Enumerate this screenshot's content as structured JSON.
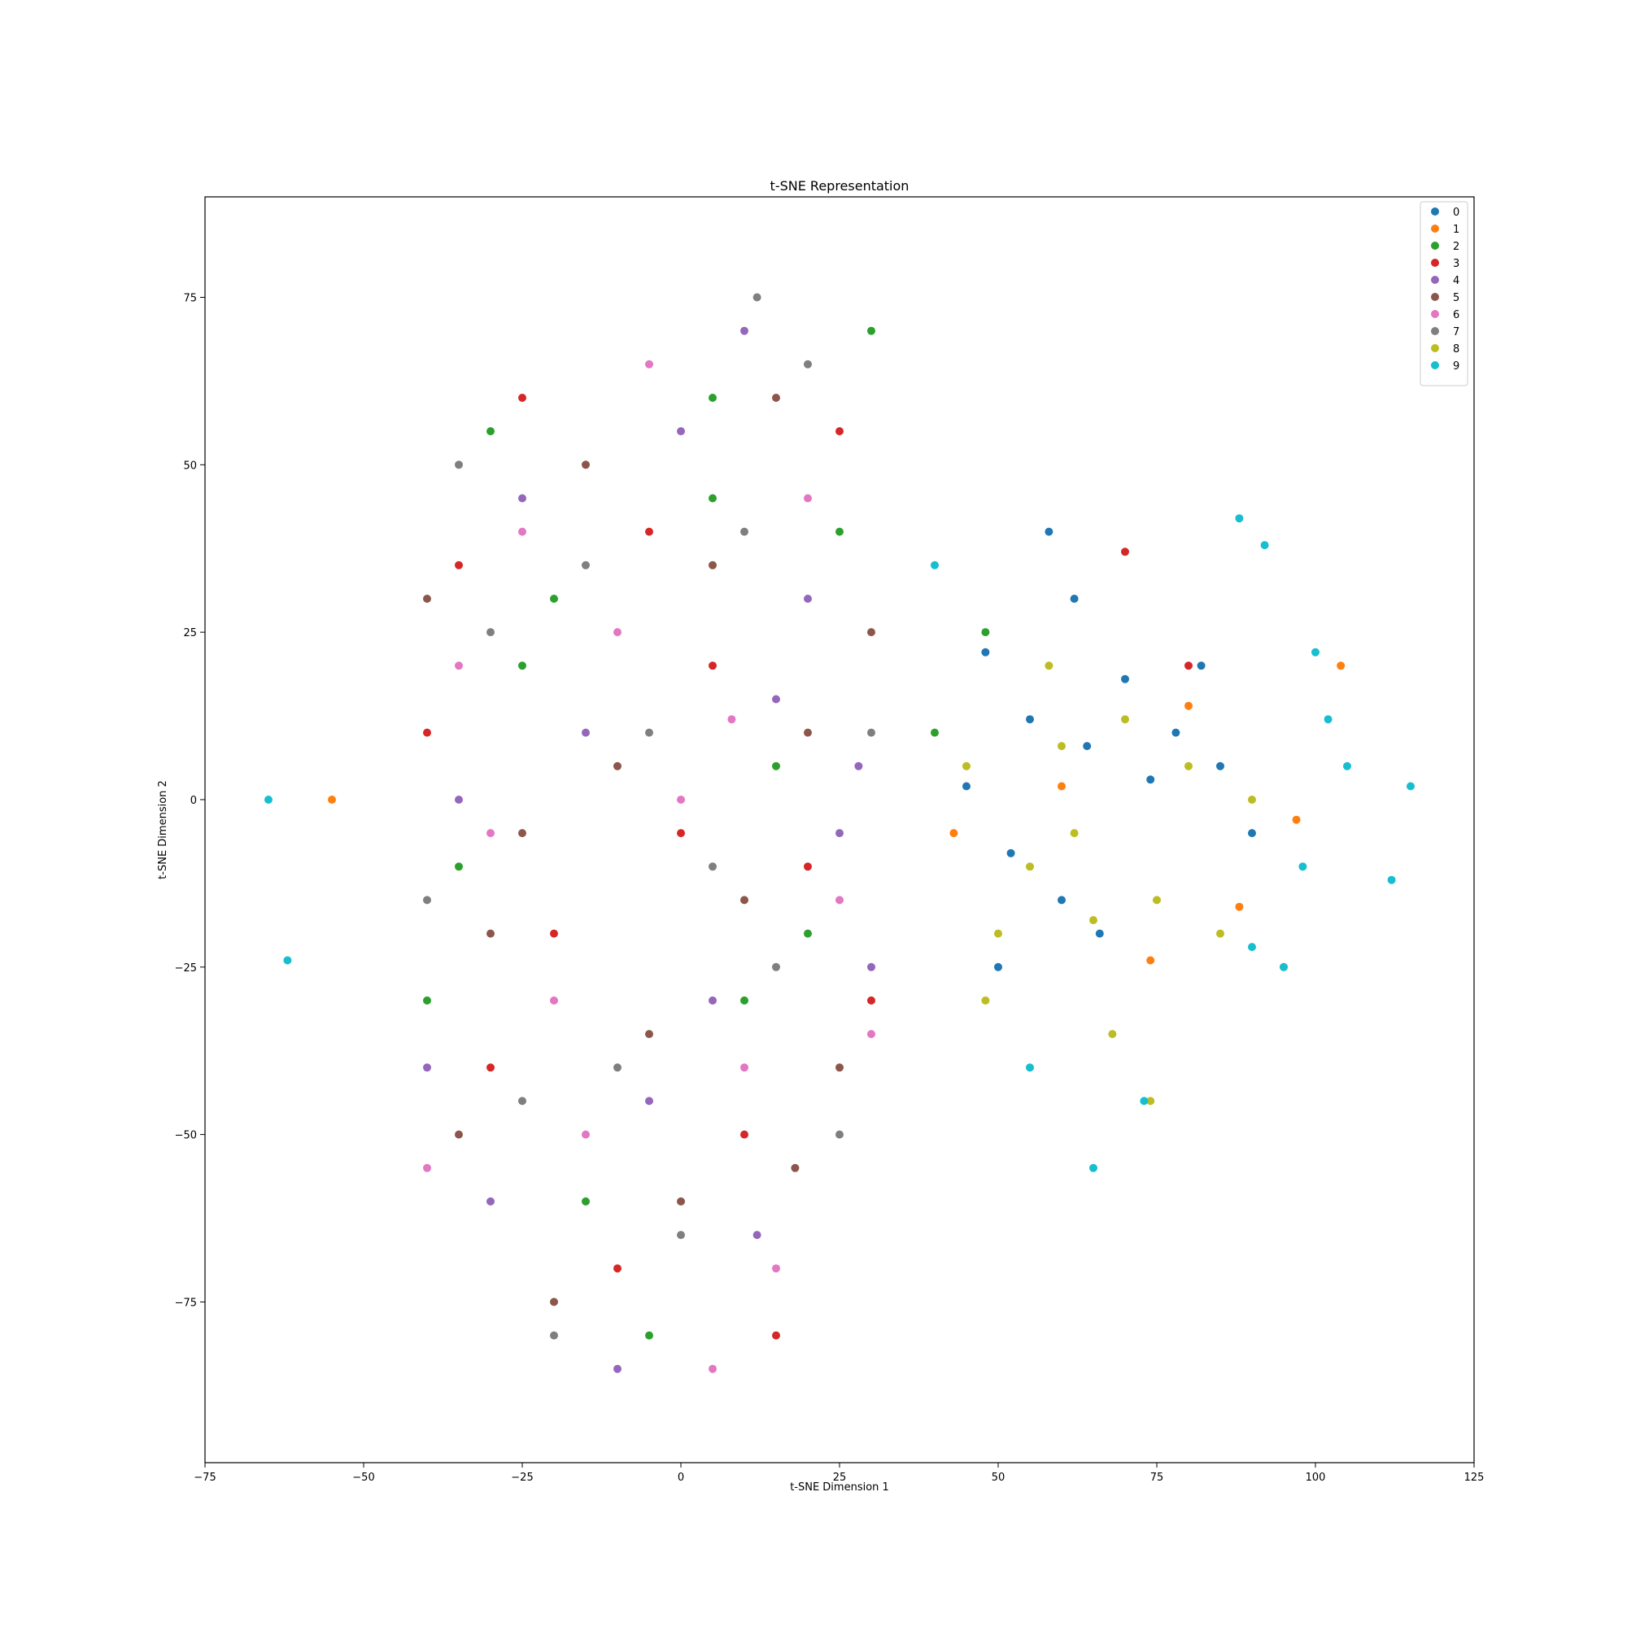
{
  "chart_data": {
    "type": "scatter",
    "title": "t-SNE Representation",
    "xlabel": "t-SNE Dimension 1",
    "ylabel": "t-SNE Dimension 2",
    "xlim": [
      -75,
      125
    ],
    "ylim": [
      -99,
      90
    ],
    "xticks": [
      -75,
      -50,
      -25,
      0,
      25,
      50,
      75,
      100,
      125
    ],
    "yticks": [
      -75,
      -50,
      -25,
      0,
      25,
      50,
      75
    ],
    "xtick_labels": [
      "−75",
      "−50",
      "−25",
      "0",
      "25",
      "50",
      "75",
      "100",
      "125"
    ],
    "ytick_labels": [
      "−75",
      "−50",
      "−25",
      "0",
      "25",
      "50",
      "75"
    ],
    "grid": false,
    "legend_position": "top-right",
    "colors": [
      "#1f77b4",
      "#ff7f0e",
      "#2ca02c",
      "#d62728",
      "#9467bd",
      "#8c564b",
      "#e377c2",
      "#7f7f7f",
      "#bcbd22",
      "#17becf"
    ],
    "series": [
      {
        "name": "0",
        "points": [
          [
            48,
            22
          ],
          [
            55,
            12
          ],
          [
            62,
            30
          ],
          [
            70,
            18
          ],
          [
            78,
            10
          ],
          [
            85,
            5
          ],
          [
            52,
            -8
          ],
          [
            60,
            -15
          ],
          [
            45,
            2
          ],
          [
            66,
            -20
          ],
          [
            74,
            3
          ],
          [
            82,
            20
          ],
          [
            58,
            40
          ],
          [
            64,
            8
          ],
          [
            50,
            -25
          ],
          [
            90,
            -5
          ]
        ]
      },
      {
        "name": "1",
        "points": [
          [
            -55,
            0
          ],
          [
            43,
            -5
          ],
          [
            74,
            -24
          ],
          [
            88,
            -16
          ],
          [
            60,
            2
          ],
          [
            97,
            -3
          ],
          [
            80,
            14
          ],
          [
            104,
            20
          ]
        ]
      },
      {
        "name": "2",
        "points": [
          [
            -20,
            30
          ],
          [
            5,
            60
          ],
          [
            25,
            40
          ],
          [
            -35,
            -10
          ],
          [
            10,
            -30
          ],
          [
            -15,
            -60
          ],
          [
            48,
            25
          ],
          [
            40,
            10
          ],
          [
            -30,
            55
          ],
          [
            15,
            5
          ],
          [
            -5,
            -80
          ],
          [
            30,
            70
          ],
          [
            -40,
            -30
          ],
          [
            20,
            -20
          ],
          [
            -25,
            20
          ],
          [
            5,
            45
          ]
        ]
      },
      {
        "name": "3",
        "points": [
          [
            -30,
            -40
          ],
          [
            -10,
            -70
          ],
          [
            5,
            20
          ],
          [
            20,
            -10
          ],
          [
            -25,
            60
          ],
          [
            10,
            -50
          ],
          [
            -40,
            10
          ],
          [
            30,
            -30
          ],
          [
            -5,
            40
          ],
          [
            15,
            -80
          ],
          [
            -20,
            -20
          ],
          [
            25,
            55
          ],
          [
            -35,
            35
          ],
          [
            0,
            -5
          ],
          [
            70,
            37
          ],
          [
            80,
            20
          ]
        ]
      },
      {
        "name": "4",
        "points": [
          [
            -15,
            10
          ],
          [
            10,
            70
          ],
          [
            -30,
            -60
          ],
          [
            25,
            -5
          ],
          [
            -40,
            -40
          ],
          [
            5,
            -30
          ],
          [
            20,
            30
          ],
          [
            -5,
            -45
          ],
          [
            -25,
            45
          ],
          [
            15,
            15
          ],
          [
            30,
            -25
          ],
          [
            -10,
            -85
          ],
          [
            0,
            55
          ],
          [
            -35,
            0
          ],
          [
            28,
            5
          ],
          [
            12,
            -65
          ]
        ]
      },
      {
        "name": "5",
        "points": [
          [
            -20,
            -75
          ],
          [
            5,
            35
          ],
          [
            -40,
            30
          ],
          [
            25,
            -40
          ],
          [
            -10,
            5
          ],
          [
            15,
            60
          ],
          [
            -30,
            -20
          ],
          [
            0,
            -60
          ],
          [
            20,
            10
          ],
          [
            -35,
            -50
          ],
          [
            10,
            -15
          ],
          [
            -15,
            50
          ],
          [
            30,
            25
          ],
          [
            -5,
            -35
          ],
          [
            18,
            -55
          ],
          [
            -25,
            -5
          ]
        ]
      },
      {
        "name": "6",
        "points": [
          [
            -30,
            -5
          ],
          [
            -10,
            25
          ],
          [
            10,
            -40
          ],
          [
            -40,
            -55
          ],
          [
            20,
            45
          ],
          [
            0,
            0
          ],
          [
            -20,
            -30
          ],
          [
            15,
            -70
          ],
          [
            -5,
            65
          ],
          [
            25,
            -15
          ],
          [
            -35,
            20
          ],
          [
            5,
            -85
          ],
          [
            -15,
            -50
          ],
          [
            30,
            -35
          ],
          [
            -25,
            40
          ],
          [
            8,
            12
          ]
        ]
      },
      {
        "name": "7",
        "points": [
          [
            -5,
            10
          ],
          [
            -25,
            -45
          ],
          [
            15,
            -25
          ],
          [
            -35,
            50
          ],
          [
            20,
            65
          ],
          [
            0,
            -65
          ],
          [
            -15,
            35
          ],
          [
            25,
            -50
          ],
          [
            -40,
            -15
          ],
          [
            10,
            40
          ],
          [
            -20,
            -80
          ],
          [
            30,
            10
          ],
          [
            5,
            -10
          ],
          [
            -30,
            25
          ],
          [
            12,
            75
          ],
          [
            -10,
            -40
          ]
        ]
      },
      {
        "name": "8",
        "points": [
          [
            45,
            5
          ],
          [
            55,
            -10
          ],
          [
            65,
            -18
          ],
          [
            75,
            -15
          ],
          [
            85,
            -20
          ],
          [
            60,
            8
          ],
          [
            70,
            12
          ],
          [
            80,
            5
          ],
          [
            90,
            0
          ],
          [
            50,
            -20
          ],
          [
            68,
            -35
          ],
          [
            74,
            -45
          ],
          [
            58,
            20
          ],
          [
            48,
            -30
          ],
          [
            95,
            -25
          ],
          [
            62,
            -5
          ]
        ]
      },
      {
        "name": "9",
        "points": [
          [
            -65,
            0
          ],
          [
            -62,
            -24
          ],
          [
            55,
            -40
          ],
          [
            65,
            -55
          ],
          [
            73,
            -45
          ],
          [
            88,
            42
          ],
          [
            92,
            38
          ],
          [
            100,
            22
          ],
          [
            105,
            5
          ],
          [
            115,
            2
          ],
          [
            98,
            -10
          ],
          [
            112,
            -12
          ],
          [
            90,
            -22
          ],
          [
            95,
            -25
          ],
          [
            40,
            35
          ],
          [
            102,
            12
          ]
        ]
      }
    ]
  }
}
